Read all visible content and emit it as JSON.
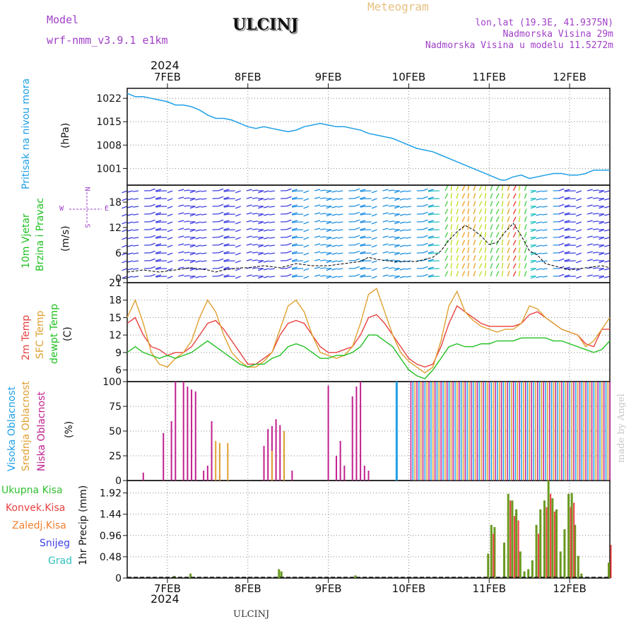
{
  "header": {
    "model_label": "Model",
    "model_value": "wrf-nmm_v3.9.1  e1km",
    "station": "ULCINJ",
    "subtitle": "Meteogram",
    "location": "lon,lat (19.3E, 41.9375N)",
    "altitude": "Nadmorska Visina 29m",
    "model_altitude": "Nadmorska Visina u modelu 11.5272m",
    "bottom_station": "ULCINJ",
    "credit": "made by Angel"
  },
  "colors": {
    "pressure": "#1fa0e6",
    "temp2m": "#e84040",
    "sfc": "#e0a030",
    "dewpt": "#20c020",
    "high_cloud": "#1fa0e6",
    "mid_cloud": "#e0a030",
    "low_cloud": "#c0208f",
    "total_rain": "#30c030",
    "convective": "#e84040",
    "frozen": "#f08030",
    "snow": "#4040e8",
    "hail": "#30c0c0",
    "purple": "#a040c8"
  },
  "time_axis": {
    "year": "2024",
    "days": [
      "7FEB",
      "8FEB",
      "9FEB",
      "10FEB",
      "11FEB",
      "12FEB"
    ],
    "day_positions": [
      7,
      8,
      9,
      10,
      11,
      12
    ],
    "range": [
      6.5,
      12.5
    ]
  },
  "compass": {
    "n": "N",
    "s": "S",
    "e": "E",
    "w": "W"
  },
  "chart_data": [
    {
      "type": "line",
      "name": "pressure",
      "ylabel_lines": [
        "Pritisak na nivou mora"
      ],
      "unit": "(hPa)",
      "ylim": [
        996,
        1025
      ],
      "yticks": [
        1001,
        1008,
        1015,
        1022
      ],
      "grid": true,
      "series": [
        {
          "x": [
            6.5,
            6.6,
            6.7,
            6.8,
            6.9,
            7.0,
            7.1,
            7.2,
            7.3,
            7.4,
            7.5,
            7.6,
            7.7,
            7.8,
            7.9,
            8.0,
            8.1,
            8.2,
            8.3,
            8.4,
            8.5,
            8.6,
            8.7,
            8.8,
            8.9,
            9.0,
            9.1,
            9.2,
            9.3,
            9.4,
            9.5,
            9.6,
            9.7,
            9.8,
            9.9,
            10.0,
            10.1,
            10.2,
            10.3,
            10.4,
            10.5,
            10.6,
            10.7,
            10.8,
            10.9,
            11.0,
            11.1,
            11.15,
            11.2,
            11.3,
            11.4,
            11.5,
            11.6,
            11.7,
            11.8,
            11.9,
            12.0,
            12.1,
            12.2,
            12.3,
            12.4,
            12.5
          ],
          "y": [
            1023.5,
            1022.5,
            1022.5,
            1022,
            1021.5,
            1021,
            1020,
            1020,
            1019.5,
            1018.5,
            1017,
            1016,
            1016,
            1015.5,
            1014.5,
            1013.5,
            1013,
            1013.5,
            1013,
            1012.5,
            1012,
            1012.5,
            1013.5,
            1014,
            1014.5,
            1014,
            1013.5,
            1013.5,
            1013,
            1012.5,
            1011.5,
            1011,
            1010.5,
            1010,
            1009,
            1008,
            1007,
            1006.5,
            1006,
            1005,
            1004,
            1003,
            1002,
            1001,
            1000,
            999,
            998,
            997.5,
            997.5,
            998.5,
            999,
            998,
            998.5,
            999,
            999.5,
            999.5,
            999,
            999,
            999.5,
            1000.5,
            1000.5,
            1000.5
          ]
        }
      ]
    },
    {
      "type": "line",
      "name": "wind",
      "ylabel_lines": [
        "10m Vjetar",
        "Brzina i Pravac"
      ],
      "unit": "(m/s)",
      "ylim": [
        -1,
        22
      ],
      "yticks": [
        0,
        6,
        12,
        18
      ],
      "series": [
        {
          "name": "speed",
          "x": [
            6.5,
            6.7,
            6.9,
            7.1,
            7.3,
            7.5,
            7.6,
            7.7,
            7.9,
            8.0,
            8.2,
            8.4,
            8.5,
            8.6,
            8.8,
            9.0,
            9.2,
            9.4,
            9.5,
            9.6,
            9.8,
            10.0,
            10.1,
            10.2,
            10.3,
            10.4,
            10.5,
            10.6,
            10.7,
            10.8,
            10.9,
            11.0,
            11.1,
            11.2,
            11.3,
            11.4,
            11.5,
            11.6,
            11.7,
            11.8,
            11.9,
            12.0,
            12.2,
            12.4,
            12.5
          ],
          "y": [
            1.5,
            2,
            1.5,
            2,
            2.5,
            2,
            1.5,
            2,
            2.5,
            2.5,
            3,
            2.5,
            3,
            3.5,
            3,
            3,
            3.5,
            4,
            5,
            4.5,
            4,
            4,
            4,
            4.5,
            5,
            6.5,
            9,
            11,
            12.5,
            11.5,
            10,
            8,
            8.5,
            11,
            13,
            10,
            6.5,
            5.5,
            3.5,
            3,
            2.5,
            2,
            2.5,
            3,
            2.5
          ]
        }
      ]
    },
    {
      "type": "line",
      "name": "temperature",
      "ylabel_lines": [
        "2m Temp",
        "SFC Temp",
        "dewpt Temp"
      ],
      "unit": "(C)",
      "ylim": [
        4,
        21
      ],
      "yticks": [
        6,
        9,
        12,
        15,
        18,
        21
      ],
      "grid": true,
      "series": [
        {
          "name": "2m Temp",
          "x": [
            6.5,
            6.6,
            6.7,
            6.8,
            6.9,
            7.0,
            7.1,
            7.2,
            7.3,
            7.4,
            7.5,
            7.6,
            7.7,
            7.8,
            7.9,
            8.0,
            8.1,
            8.2,
            8.3,
            8.4,
            8.5,
            8.6,
            8.7,
            8.8,
            8.9,
            9.0,
            9.1,
            9.2,
            9.3,
            9.4,
            9.5,
            9.6,
            9.7,
            9.8,
            9.9,
            10.0,
            10.1,
            10.2,
            10.3,
            10.4,
            10.5,
            10.6,
            10.7,
            10.8,
            10.9,
            11.0,
            11.1,
            11.2,
            11.3,
            11.4,
            11.5,
            11.6,
            11.7,
            11.8,
            11.9,
            12.0,
            12.1,
            12.2,
            12.3,
            12.4,
            12.5
          ],
          "y": [
            14,
            15,
            12,
            10,
            9.5,
            8.5,
            9,
            9,
            10,
            12,
            14,
            14.5,
            13,
            11,
            9,
            7,
            7,
            8,
            9,
            12,
            14,
            14.5,
            14,
            12,
            10,
            9,
            9,
            9.5,
            10,
            12,
            15,
            15.5,
            14,
            12,
            10,
            8,
            7,
            6.5,
            7,
            10,
            14,
            17,
            16,
            15,
            14,
            13.5,
            13.5,
            13.5,
            13.5,
            14,
            15.5,
            16,
            15,
            14,
            13,
            12.5,
            12,
            10.5,
            10,
            13,
            13
          ]
        },
        {
          "name": "SFC Temp",
          "x": [
            6.5,
            6.6,
            6.7,
            6.8,
            6.9,
            7.0,
            7.1,
            7.2,
            7.3,
            7.4,
            7.5,
            7.6,
            7.7,
            7.8,
            7.9,
            8.0,
            8.1,
            8.2,
            8.3,
            8.4,
            8.5,
            8.6,
            8.7,
            8.8,
            8.9,
            9.0,
            9.1,
            9.2,
            9.3,
            9.4,
            9.5,
            9.6,
            9.7,
            9.8,
            9.9,
            10.0,
            10.1,
            10.2,
            10.3,
            10.4,
            10.5,
            10.6,
            10.7,
            10.8,
            10.9,
            11.0,
            11.1,
            11.2,
            11.3,
            11.4,
            11.5,
            11.6,
            11.7,
            11.8,
            11.9,
            12.0,
            12.1,
            12.2,
            12.3,
            12.4,
            12.5
          ],
          "y": [
            15,
            18,
            14,
            9,
            7,
            6.5,
            8,
            9,
            11,
            15,
            18,
            16,
            12,
            9,
            7.5,
            6.5,
            6.5,
            7.5,
            9,
            13,
            17,
            18,
            16,
            12,
            9,
            8.5,
            8,
            8.5,
            10,
            14,
            19,
            20,
            16,
            12,
            9,
            7.5,
            6.5,
            5.5,
            6.5,
            11,
            17,
            19.5,
            16,
            14.5,
            13.5,
            13,
            12.5,
            13,
            13,
            14,
            17,
            16.5,
            15,
            14,
            13,
            12.5,
            12,
            10,
            11,
            13,
            15
          ]
        },
        {
          "name": "dewpt Temp",
          "x": [
            6.5,
            6.6,
            6.7,
            6.8,
            6.9,
            7.0,
            7.1,
            7.2,
            7.3,
            7.4,
            7.5,
            7.6,
            7.7,
            7.8,
            7.9,
            8.0,
            8.1,
            8.2,
            8.3,
            8.4,
            8.5,
            8.6,
            8.7,
            8.8,
            8.9,
            9.0,
            9.1,
            9.2,
            9.3,
            9.4,
            9.5,
            9.6,
            9.7,
            9.8,
            9.9,
            10.0,
            10.1,
            10.2,
            10.3,
            10.4,
            10.5,
            10.6,
            10.7,
            10.8,
            10.9,
            11.0,
            11.1,
            11.2,
            11.3,
            11.4,
            11.5,
            11.6,
            11.7,
            11.8,
            11.9,
            12.0,
            12.1,
            12.2,
            12.3,
            12.4,
            12.5
          ],
          "y": [
            9,
            10,
            9,
            8.5,
            8,
            8.5,
            8,
            8.5,
            9,
            10,
            11,
            10,
            9,
            8,
            7,
            6.5,
            7,
            7,
            8,
            8.5,
            10,
            10.5,
            10,
            9,
            8,
            8,
            8.5,
            8.5,
            9,
            10,
            12,
            12,
            11,
            10,
            8,
            6,
            5,
            4.5,
            6,
            8,
            10,
            10.5,
            10,
            10,
            10.5,
            10.5,
            11,
            11,
            11,
            11.5,
            11.5,
            11.5,
            11.5,
            11,
            11,
            10.5,
            10,
            9.5,
            9,
            9.5,
            11
          ]
        }
      ]
    },
    {
      "type": "bar",
      "name": "clouds",
      "ylabel_lines": [
        "Visoka Oblacnost",
        "Srednja Oblacnost",
        "Niska Oblacnost"
      ],
      "unit": "(%)",
      "ylim": [
        0,
        100
      ],
      "yticks": [
        0,
        25,
        50,
        75,
        100
      ],
      "grid": true,
      "series": [
        {
          "name": "Niska Oblacnost",
          "x": [
            6.7,
            6.95,
            7.05,
            7.1,
            7.2,
            7.25,
            7.3,
            7.35,
            7.45,
            7.5,
            7.55,
            7.65,
            8.2,
            8.25,
            8.3,
            8.35,
            8.4,
            8.45,
            8.55,
            9.0,
            9.1,
            9.15,
            9.2,
            9.3,
            9.35,
            9.4,
            9.45,
            9.5
          ],
          "y": [
            8,
            48,
            60,
            100,
            100,
            95,
            92,
            90,
            10,
            15,
            60,
            5,
            35,
            52,
            55,
            62,
            56,
            45,
            10,
            96,
            25,
            40,
            15,
            85,
            95,
            100,
            15,
            10
          ]
        },
        {
          "name": "Srednja Oblacnost",
          "x": [
            7.6,
            7.65,
            7.75,
            8.3,
            8.45,
            9.85
          ],
          "y": [
            40,
            38,
            38,
            30,
            50,
            70
          ]
        },
        {
          "name": "Visoka Oblacnost",
          "x": [
            9.85
          ],
          "y": [
            100
          ]
        }
      ]
    },
    {
      "type": "bar",
      "name": "precipitation",
      "ylabel_lines": [
        "Ukupna Kisa",
        "Konvek.Kisa",
        "Zaledj.Kisa",
        "Snijeg",
        "Grad"
      ],
      "unit": "1hr Precip (mm)",
      "ylim": [
        0,
        2.2
      ],
      "yticks": [
        0,
        0.48,
        0.96,
        1.44,
        1.92
      ],
      "ytick_labels": [
        "0",
        "0.48",
        "0.96",
        "1.44",
        "1.92"
      ],
      "grid": true,
      "series": [
        {
          "name": "Ukupna Kisa",
          "x": [
            7.1,
            7.3,
            8.4,
            8.43,
            9.35,
            11.0,
            11.04,
            11.08,
            11.2,
            11.25,
            11.3,
            11.35,
            11.4,
            11.45,
            11.5,
            11.55,
            11.6,
            11.65,
            11.7,
            11.75,
            11.8,
            11.85,
            11.9,
            11.95,
            12.0,
            12.04,
            12.08,
            12.12,
            12.16,
            12.5
          ],
          "y": [
            0.05,
            0.1,
            0.2,
            0.15,
            0.06,
            0.55,
            1.2,
            1.15,
            0.8,
            1.9,
            1.75,
            1.55,
            0.6,
            0.15,
            0.2,
            0.4,
            1.2,
            1.55,
            1.75,
            2.2,
            1.8,
            1.55,
            0.6,
            1.1,
            1.9,
            1.92,
            1.2,
            0.5,
            0.1,
            0.35
          ]
        },
        {
          "name": "Konvek.Kisa",
          "x": [
            11.04,
            11.25,
            11.3,
            11.35,
            11.6,
            11.7,
            11.75,
            11.8,
            12.0,
            12.04,
            12.5
          ],
          "y": [
            1.0,
            1.75,
            1.4,
            1.3,
            1.0,
            1.6,
            1.9,
            1.5,
            1.6,
            1.7,
            0.75
          ]
        }
      ]
    }
  ]
}
